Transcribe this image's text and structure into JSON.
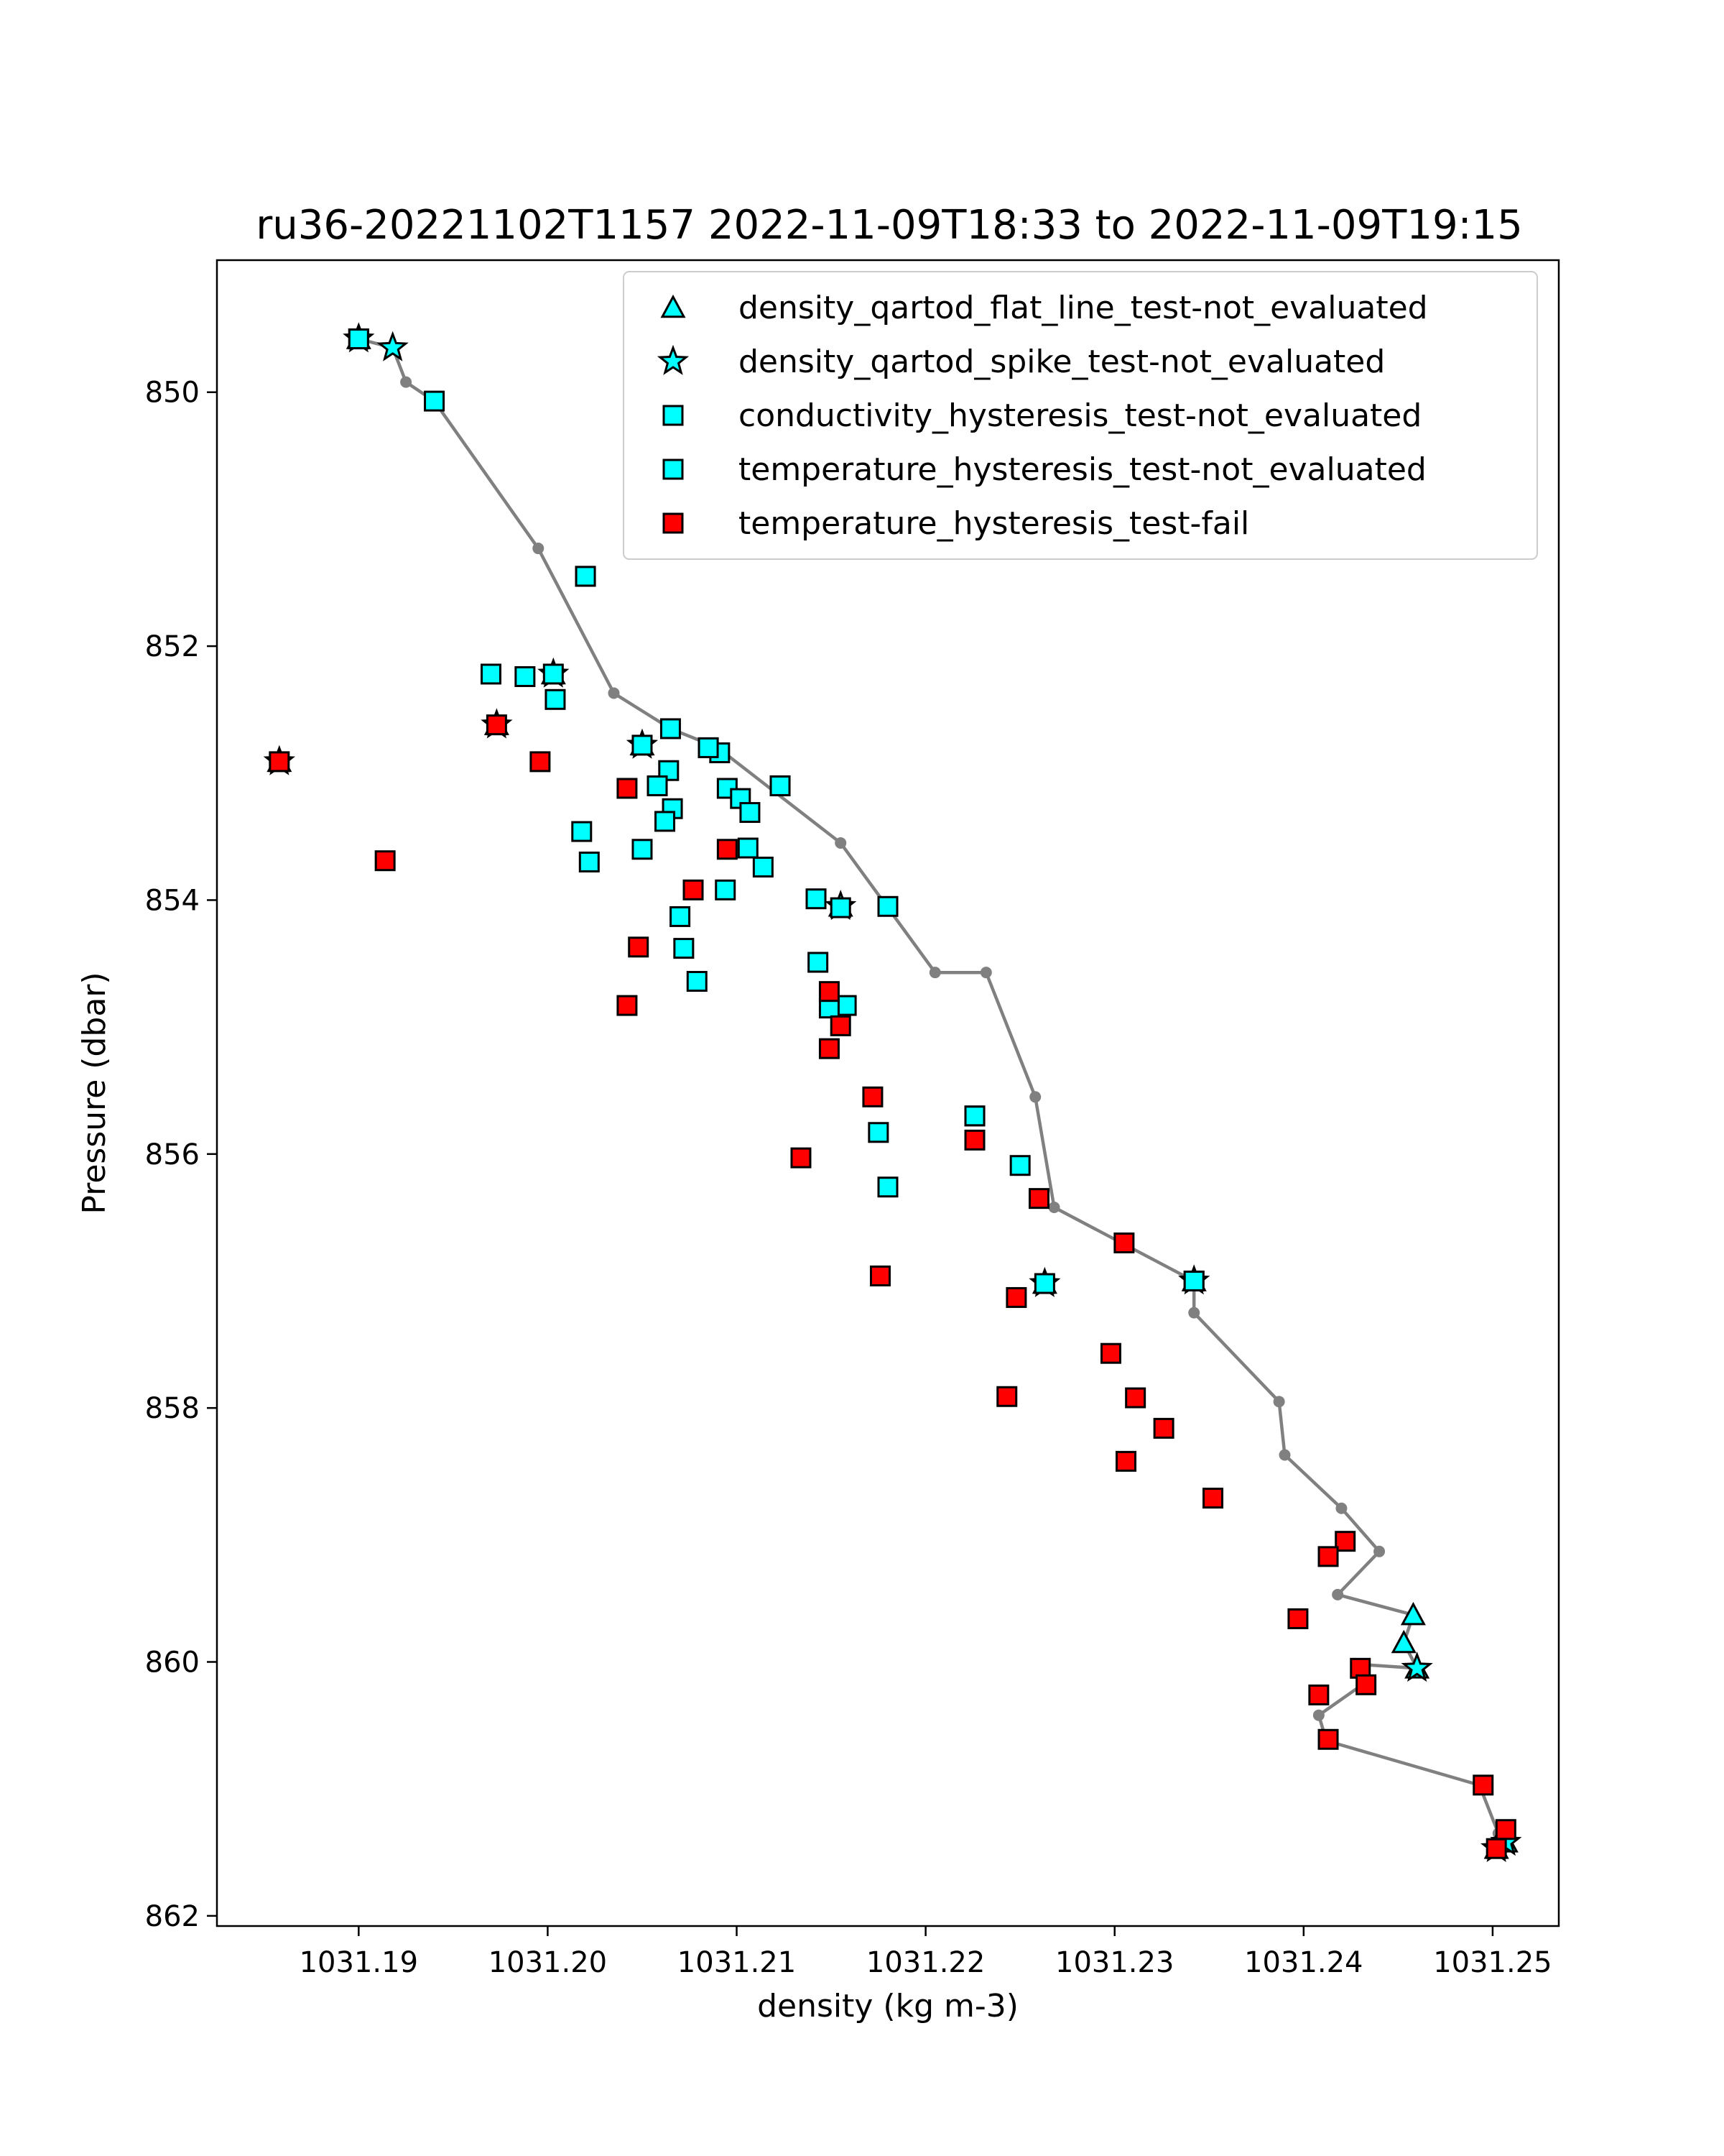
{
  "chart_data": {
    "type": "scatter",
    "title": "ru36-20221102T1157 2022-11-09T18:33 to 2022-11-09T19:15",
    "xlabel": "density (kg m-3)",
    "ylabel": "Pressure (dbar)",
    "xlim": [
      1031.1825,
      1031.2535
    ],
    "ylim": [
      862.08,
      848.96
    ],
    "y_inverted": true,
    "grid": false,
    "legend_position": "top-right",
    "xticks": [
      1031.19,
      1031.2,
      1031.21,
      1031.22,
      1031.23,
      1031.24,
      1031.25
    ],
    "xtick_labels": [
      "1031.19",
      "1031.20",
      "1031.21",
      "1031.22",
      "1031.23",
      "1031.24",
      "1031.25"
    ],
    "yticks": [
      850,
      852,
      854,
      856,
      858,
      860,
      862
    ],
    "ytick_labels": [
      "850",
      "852",
      "854",
      "856",
      "858",
      "860",
      "862"
    ],
    "profile_line": {
      "color": "#808080",
      "x": [
        1031.19,
        1031.1918,
        1031.1925,
        1031.194,
        1031.1995,
        1031.2035,
        1031.2065,
        1031.209,
        1031.2155,
        1031.2205,
        1031.2232,
        1031.2258,
        1031.2268,
        1031.2342,
        1031.2342,
        1031.2387,
        1031.239,
        1031.242,
        1031.244,
        1031.2418,
        1031.2458,
        1031.2453,
        1031.246,
        1031.246,
        1031.243,
        1031.2432,
        1031.2408,
        1031.2412,
        1031.2493,
        1031.2503,
        1031.2507,
        1031.2502
      ],
      "y": [
        849.58,
        849.65,
        849.92,
        850.07,
        851.23,
        852.37,
        852.65,
        852.8,
        853.55,
        854.57,
        854.57,
        855.55,
        856.42,
        857.0,
        857.25,
        857.95,
        858.37,
        858.79,
        859.13,
        859.47,
        859.63,
        859.85,
        860.05,
        860.05,
        860.02,
        860.17,
        860.42,
        860.62,
        860.97,
        861.35,
        861.42,
        861.47
      ]
    },
    "series": [
      {
        "name": "density_qartod_flat_line_test-not_evaluated",
        "marker": "triangle",
        "color": "#00ffff",
        "x": [
          1031.19,
          1031.2003,
          1031.1973,
          1031.1858,
          1031.205,
          1031.2155,
          1031.2263,
          1031.2342,
          1031.2458,
          1031.2453,
          1031.246,
          1031.2502,
          1031.2507
        ],
        "y": [
          849.58,
          852.22,
          852.62,
          852.91,
          852.78,
          854.05,
          857.02,
          857.0,
          859.63,
          859.85,
          860.05,
          861.47,
          861.42
        ]
      },
      {
        "name": "density_qartod_spike_test-not_evaluated",
        "marker": "star",
        "color": "#00ffff",
        "x": [
          1031.19,
          1031.1918,
          1031.2003,
          1031.1973,
          1031.1858,
          1031.205,
          1031.2155,
          1031.2263,
          1031.2342,
          1031.246,
          1031.2502,
          1031.2507
        ],
        "y": [
          849.58,
          849.65,
          852.22,
          852.62,
          852.91,
          852.78,
          854.05,
          857.02,
          857.0,
          860.05,
          861.47,
          861.42
        ]
      },
      {
        "name": "conductivity_hysteresis_test-not_evaluated",
        "marker": "square",
        "color": "#00ffff",
        "x": [
          1031.19,
          1031.194,
          1031.202,
          1031.197,
          1031.1988,
          1031.2003,
          1031.2004,
          1031.2065,
          1031.205,
          1031.2085,
          1031.2091,
          1031.2064,
          1031.2095,
          1031.2123,
          1031.2058,
          1031.2102,
          1031.2107,
          1031.2066,
          1031.2062,
          1031.2018,
          1031.205,
          1031.2106,
          1031.2022,
          1031.2114,
          1031.2094,
          1031.2142,
          1031.218,
          1031.2155,
          1031.207,
          1031.2072,
          1031.2143,
          1031.2079,
          1031.2158,
          1031.2149,
          1031.2226,
          1031.2175,
          1031.225,
          1031.218,
          1031.2263,
          1031.2342
        ],
        "y": [
          849.58,
          850.07,
          851.45,
          852.22,
          852.24,
          852.22,
          852.42,
          852.65,
          852.78,
          852.8,
          852.84,
          852.98,
          853.12,
          853.1,
          853.1,
          853.2,
          853.31,
          853.28,
          853.38,
          853.46,
          853.6,
          853.59,
          853.7,
          853.74,
          853.92,
          853.99,
          854.05,
          854.06,
          854.13,
          854.38,
          854.49,
          854.64,
          854.83,
          854.85,
          855.7,
          855.83,
          856.09,
          856.26,
          857.02,
          857.0
        ]
      },
      {
        "name": "temperature_hysteresis_test-not_evaluated",
        "marker": "square",
        "color": "#00ffff",
        "x": [
          1031.19,
          1031.202,
          1031.2085,
          1031.2123,
          1031.2226,
          1031.2342
        ],
        "y": [
          849.58,
          851.45,
          852.8,
          853.1,
          855.7,
          857.0
        ]
      },
      {
        "name": "temperature_hysteresis_test-fail",
        "marker": "square",
        "color": "#ff0000",
        "x": [
          1031.1858,
          1031.1973,
          1031.1996,
          1031.2042,
          1031.1914,
          1031.2095,
          1031.2077,
          1031.2048,
          1031.2149,
          1031.2042,
          1031.2155,
          1031.2149,
          1031.2172,
          1031.2226,
          1031.226,
          1031.2134,
          1031.2305,
          1031.2176,
          1031.2248,
          1031.2298,
          1031.2243,
          1031.2311,
          1031.2326,
          1031.2306,
          1031.2352,
          1031.2422,
          1031.2413,
          1031.2397,
          1031.243,
          1031.2433,
          1031.2408,
          1031.2413,
          1031.2495,
          1031.2507,
          1031.2502
        ],
        "y": [
          852.91,
          852.62,
          852.91,
          853.12,
          853.69,
          853.6,
          853.92,
          854.37,
          854.72,
          854.83,
          854.99,
          855.17,
          855.55,
          855.89,
          856.35,
          856.03,
          856.7,
          856.96,
          857.13,
          857.57,
          857.91,
          857.92,
          858.16,
          858.42,
          858.71,
          859.05,
          859.17,
          859.66,
          860.05,
          860.18,
          860.26,
          860.61,
          860.97,
          861.32,
          861.47
        ]
      }
    ]
  }
}
